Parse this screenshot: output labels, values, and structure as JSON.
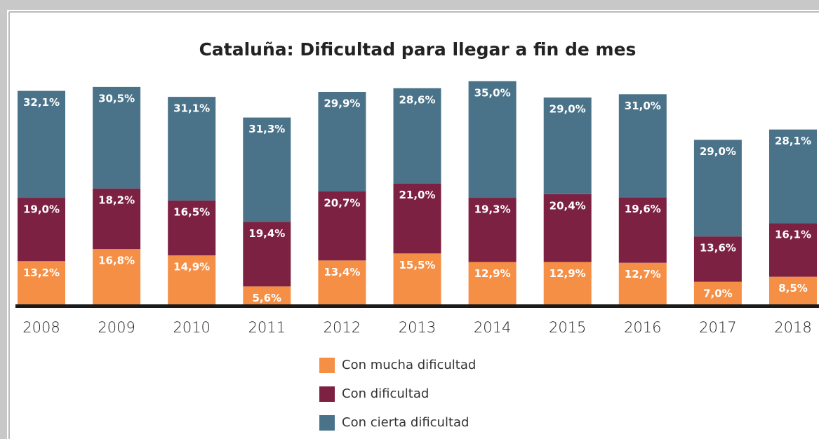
{
  "chart_data": {
    "type": "stacked_bar",
    "title": "Cataluña: Dificultad para llegar a fin de mes",
    "categories": [
      "2008",
      "2009",
      "2010",
      "2011",
      "2012",
      "2013",
      "2014",
      "2015",
      "2016",
      "2017",
      "2018"
    ],
    "series": [
      {
        "name": "Con mucha dificultad",
        "color": "#f58f45",
        "values": [
          13.2,
          16.8,
          14.9,
          5.6,
          13.4,
          15.5,
          12.9,
          12.9,
          12.7,
          7.0,
          8.5
        ],
        "value_labels": [
          "13,2%",
          "16,8%",
          "14,9%",
          "5,6%",
          "13,4%",
          "15,5%",
          "12,9%",
          "12,9%",
          "12,7%",
          "7,0%",
          "8,5%"
        ]
      },
      {
        "name": "Con dificultad",
        "color": "#7c2142",
        "values": [
          19.0,
          18.2,
          16.5,
          19.4,
          20.7,
          21.0,
          19.3,
          20.4,
          19.6,
          13.6,
          16.1
        ],
        "value_labels": [
          "19,0%",
          "18,2%",
          "16,5%",
          "19,4%",
          "20,7%",
          "21,0%",
          "19,3%",
          "20,4%",
          "19,6%",
          "13,6%",
          "16,1%"
        ]
      },
      {
        "name": "Con cierta dificultad",
        "color": "#4a7389",
        "values": [
          32.1,
          30.5,
          31.1,
          31.3,
          29.9,
          28.6,
          35.0,
          29.0,
          31.0,
          29.0,
          28.1
        ],
        "value_labels": [
          "32,1%",
          "30,5%",
          "31,1%",
          "31,3%",
          "29,9%",
          "28,6%",
          "35,0%",
          "29,0%",
          "31,0%",
          "29,0%",
          "28,1%"
        ]
      }
    ]
  }
}
